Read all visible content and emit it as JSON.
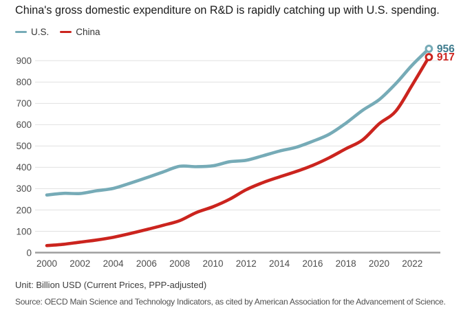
{
  "title": "China's gross domestic expenditure on R&D is rapidly catching up with U.S. spending.",
  "legend": {
    "us": {
      "label": "U.S.",
      "color": "#76abb7"
    },
    "china": {
      "label": "China",
      "color": "#cb241e"
    }
  },
  "footer": {
    "unit": "Unit: Billion USD (Current Prices, PPP-adjusted)",
    "source": "Source: OECD Main Science and Technology Indicators, as cited by American Association for the Advancement of Science."
  },
  "colors": {
    "us_line": "#76abb7",
    "us_label": "#3e7b8d",
    "china_line": "#cb241e",
    "china_label": "#cb241e",
    "gridline": "#e1e1e1",
    "axis_line": "#9e9e9e",
    "tick_text": "#4d4d4d"
  },
  "chart_data": {
    "type": "line",
    "title": "China's gross domestic expenditure on R&D is rapidly catching up with U.S. spending.",
    "x": [
      2000,
      2001,
      2002,
      2003,
      2004,
      2005,
      2006,
      2007,
      2008,
      2009,
      2010,
      2011,
      2012,
      2013,
      2014,
      2015,
      2016,
      2017,
      2018,
      2019,
      2020,
      2021,
      2022,
      2023
    ],
    "series": [
      {
        "name": "U.S.",
        "color": "#76abb7",
        "label_color": "#3e7b8d",
        "end_label": "956",
        "values": [
          270,
          278,
          277,
          290,
          301,
          325,
          351,
          378,
          405,
          403,
          407,
          426,
          433,
          454,
          476,
          494,
          522,
          555,
          607,
          667,
          717,
          792,
          880,
          956
        ]
      },
      {
        "name": "China",
        "color": "#cb241e",
        "label_color": "#cb241e",
        "end_label": "917",
        "values": [
          33,
          39,
          49,
          59,
          72,
          89,
          108,
          128,
          150,
          188,
          215,
          250,
          295,
          328,
          355,
          380,
          409,
          445,
          487,
          528,
          604,
          663,
          787,
          917
        ]
      }
    ],
    "xticks": [
      2000,
      2002,
      2004,
      2006,
      2008,
      2010,
      2012,
      2014,
      2016,
      2018,
      2020,
      2022
    ],
    "yticks": [
      0,
      100,
      200,
      300,
      400,
      500,
      600,
      700,
      800,
      900
    ],
    "xlabel": "",
    "ylabel": "",
    "ylim": [
      0,
      965
    ],
    "grid": true,
    "legend_position": "top-left"
  }
}
